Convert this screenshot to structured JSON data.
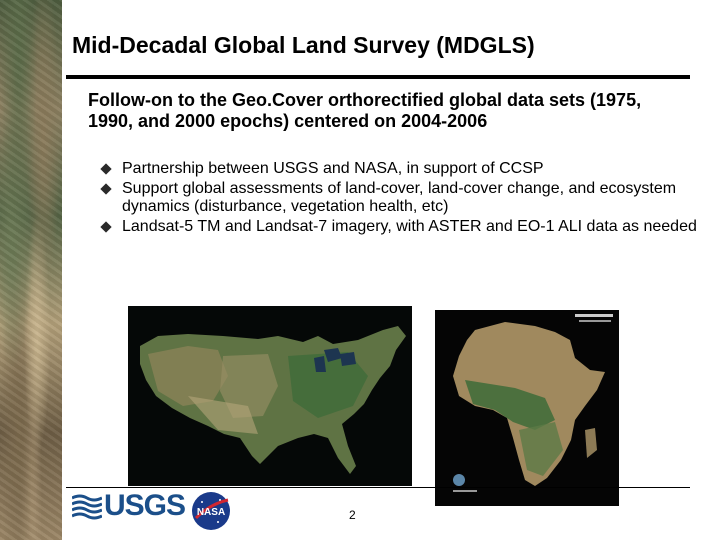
{
  "slide": {
    "title": "Mid-Decadal Global Land Survey (MDGLS)",
    "lead": "Follow-on to the Geo.Cover orthorectified global data sets (1975, 1990, and 2000 epochs) centered on 2004-2006",
    "bullets": [
      "Partnership between USGS and NASA, in support of CCSP",
      "Support global assessments of land-cover, land-cover change, and ecosystem dynamics (disturbance, vegetation health, etc)",
      "Landsat-5 TM and Landsat-7 imagery, with ASTER and EO-1 ALI data as needed"
    ],
    "page_number": "2"
  },
  "logos": {
    "usgs_text": "USGS",
    "nasa_text": "NASA"
  },
  "colors": {
    "usgs_blue": "#1b4f8a",
    "nasa_blue": "#1a3a8a",
    "nasa_red": "#d22630"
  },
  "images": {
    "usa_map": "satellite-mosaic-usa",
    "africa_map": "satellite-mosaic-africa"
  }
}
